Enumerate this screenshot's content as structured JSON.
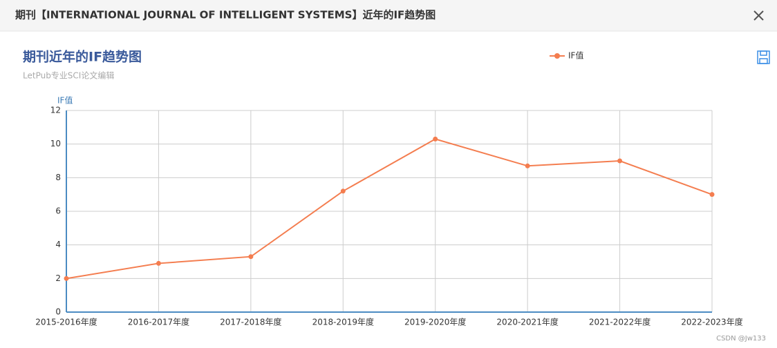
{
  "header": {
    "title": "期刊【INTERNATIONAL JOURNAL OF INTELLIGENT SYSTEMS】近年的IF趋势图"
  },
  "chart_data": {
    "type": "line",
    "title": "期刊近年的IF趋势图",
    "subtitle": "LetPub专业SCI论文编辑",
    "y_label": "IF值",
    "categories": [
      "2015-2016年度",
      "2016-2017年度",
      "2017-2018年度",
      "2018-2019年度",
      "2019-2020年度",
      "2020-2021年度",
      "2021-2022年度",
      "2022-2023年度"
    ],
    "series": [
      {
        "name": "IF值",
        "color": "#f47d4f",
        "values": [
          2.0,
          2.9,
          3.3,
          7.2,
          10.3,
          8.7,
          9.0,
          7.0
        ]
      }
    ],
    "ylim": [
      0,
      12
    ],
    "yticks": [
      0,
      2,
      4,
      6,
      8,
      10,
      12
    ],
    "grid": true
  },
  "footer": {
    "watermark": "CSDN @Jw133"
  }
}
